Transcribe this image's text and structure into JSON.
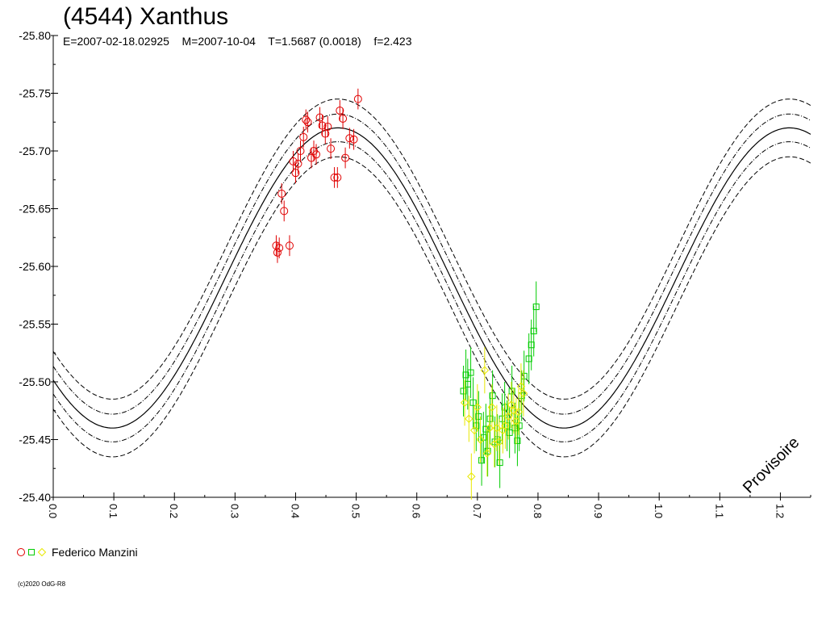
{
  "header": {
    "title": "(4544) Xanthus",
    "subtitle": "E=2007-02-18.02925    M=2007-10-04    T=1.5687 (0.0018)    f=2.423"
  },
  "footer": {
    "copyright": "(c)2020 OdG-R8"
  },
  "watermark": "Provisoire",
  "legend": {
    "label": "Federico Manzini",
    "markers": [
      {
        "shape": "circle",
        "color": "#e00000"
      },
      {
        "shape": "square",
        "color": "#00cc00"
      },
      {
        "shape": "diamond",
        "color": "#e8e800"
      }
    ]
  },
  "chart_data": {
    "type": "scatter",
    "title": "(4544) Xanthus",
    "xlabel": "",
    "ylabel": "",
    "xlim": [
      0.0,
      1.25
    ],
    "ylim": [
      -25.8,
      -25.4
    ],
    "y_inverted": true,
    "x_ticks": [
      "0.0",
      "0.1",
      "0.2",
      "0.3",
      "0.4",
      "0.5",
      "0.6",
      "0.7",
      "0.8",
      "0.9",
      "1.0",
      "1.1",
      "1.2"
    ],
    "y_ticks": [
      "-25.80",
      "-25.75",
      "-25.70",
      "-25.65",
      "-25.60",
      "-25.55",
      "-25.50",
      "-25.45",
      "-25.40"
    ],
    "grid": false,
    "legend_position": "bottom-left",
    "fit_curve": {
      "mean": -25.59,
      "amplitude": 0.13,
      "period": 0.745,
      "peak_phase": 0.47,
      "offsets_solid": [
        0.0
      ],
      "offsets_dashdot": [
        -0.012,
        0.012
      ],
      "offsets_dashed": [
        -0.025,
        0.025
      ]
    },
    "series": [
      {
        "color": "#e00000",
        "marker": "circle",
        "x": [
          0.368,
          0.37,
          0.373,
          0.377,
          0.381,
          0.39,
          0.396,
          0.4,
          0.404,
          0.408,
          0.413,
          0.417,
          0.42,
          0.426,
          0.43,
          0.434,
          0.44,
          0.444,
          0.449,
          0.453,
          0.458,
          0.464,
          0.469,
          0.473,
          0.478,
          0.482,
          0.489,
          0.496,
          0.503
        ],
        "y": [
          -25.618,
          -25.612,
          -25.616,
          -25.663,
          -25.648,
          -25.618,
          -25.691,
          -25.681,
          -25.689,
          -25.7,
          -25.712,
          -25.727,
          -25.725,
          -25.694,
          -25.7,
          -25.697,
          -25.729,
          -25.722,
          -25.715,
          -25.721,
          -25.702,
          -25.677,
          -25.677,
          -25.735,
          -25.728,
          -25.694,
          -25.711,
          -25.71,
          -25.745
        ],
        "err": [
          0.009,
          0.009,
          0.009,
          0.009,
          0.009,
          0.009,
          0.009,
          0.009,
          0.009,
          0.009,
          0.009,
          0.009,
          0.009,
          0.009,
          0.009,
          0.009,
          0.009,
          0.009,
          0.009,
          0.009,
          0.009,
          0.009,
          0.009,
          0.009,
          0.009,
          0.009,
          0.009,
          0.009,
          0.009
        ]
      },
      {
        "color": "#00cc00",
        "marker": "square",
        "x": [
          0.677,
          0.681,
          0.684,
          0.689,
          0.693,
          0.698,
          0.702,
          0.707,
          0.71,
          0.714,
          0.717,
          0.721,
          0.725,
          0.729,
          0.733,
          0.737,
          0.741,
          0.745,
          0.749,
          0.753,
          0.757,
          0.762,
          0.766,
          0.769,
          0.773,
          0.777,
          0.785,
          0.789,
          0.793,
          0.797
        ],
        "y": [
          -25.492,
          -25.506,
          -25.498,
          -25.508,
          -25.482,
          -25.462,
          -25.47,
          -25.432,
          -25.452,
          -25.459,
          -25.44,
          -25.468,
          -25.488,
          -25.448,
          -25.45,
          -25.43,
          -25.468,
          -25.478,
          -25.462,
          -25.456,
          -25.492,
          -25.46,
          -25.449,
          -25.462,
          -25.488,
          -25.505,
          -25.52,
          -25.532,
          -25.544,
          -25.565
        ],
        "err": [
          0.022,
          0.022,
          0.022,
          0.022,
          0.022,
          0.022,
          0.022,
          0.022,
          0.022,
          0.022,
          0.022,
          0.022,
          0.022,
          0.022,
          0.022,
          0.022,
          0.022,
          0.022,
          0.022,
          0.022,
          0.022,
          0.022,
          0.022,
          0.022,
          0.022,
          0.022,
          0.022,
          0.022,
          0.022,
          0.022
        ]
      },
      {
        "color": "#e8e800",
        "marker": "diamond",
        "x": [
          0.679,
          0.686,
          0.69,
          0.695,
          0.7,
          0.705,
          0.712,
          0.716,
          0.72,
          0.724,
          0.728,
          0.732,
          0.736,
          0.742,
          0.746,
          0.751,
          0.756,
          0.76,
          0.764,
          0.768,
          0.772,
          0.776
        ],
        "y": [
          -25.482,
          -25.468,
          -25.418,
          -25.458,
          -25.478,
          -25.45,
          -25.51,
          -25.438,
          -25.46,
          -25.478,
          -25.446,
          -25.46,
          -25.448,
          -25.458,
          -25.462,
          -25.47,
          -25.48,
          -25.475,
          -25.466,
          -25.474,
          -25.496,
          -25.49
        ],
        "err": [
          0.02,
          0.02,
          0.02,
          0.02,
          0.02,
          0.02,
          0.02,
          0.02,
          0.02,
          0.02,
          0.02,
          0.02,
          0.02,
          0.02,
          0.02,
          0.02,
          0.02,
          0.02,
          0.02,
          0.02,
          0.02,
          0.02
        ]
      }
    ]
  }
}
